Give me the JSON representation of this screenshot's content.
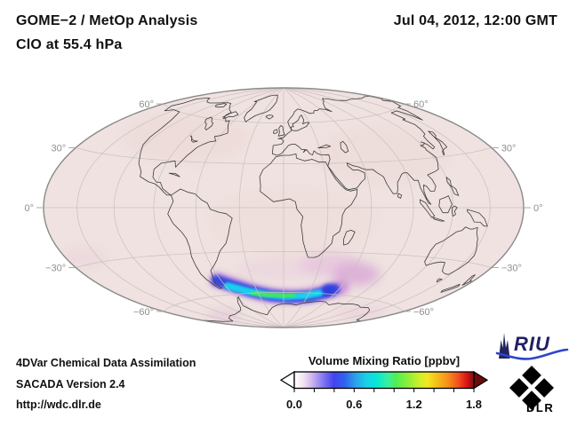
{
  "header": {
    "title_line1": "GOME−2 / MetOp Analysis",
    "title_line2": "ClO at 55.4 hPa",
    "timestamp": "Jul 04, 2012, 12:00 GMT"
  },
  "footer": {
    "line1": "4DVar Chemical Data Assimilation",
    "line2": "SACADA Version 2.4",
    "line3": "http://wdc.dlr.de"
  },
  "logos": {
    "riu_text": "RIU",
    "dlr_text": "DLR",
    "riu_color": "#1f1f66",
    "riu_wave_color": "#2d46c8",
    "dlr_color": "#000000"
  },
  "colorbar": {
    "title": "Volume Mixing Ratio [ppbv]",
    "tick_labels": [
      "0.0",
      "0.6",
      "1.2",
      "1.8"
    ],
    "tick_values": [
      0.0,
      0.6,
      1.2,
      1.8
    ],
    "range": [
      0.0,
      1.8
    ],
    "minor_tick_step": 0.2,
    "left_arrow_color": "#ffffff",
    "right_arrow_color": "#6b0c0c",
    "gradient_stops": [
      [
        "0.00",
        "#ffffff"
      ],
      [
        "0.05",
        "#f3e4f2"
      ],
      [
        "0.10",
        "#cdb3ee"
      ],
      [
        "0.16",
        "#8079f2"
      ],
      [
        "0.22",
        "#4343ef"
      ],
      [
        "0.28",
        "#2f63ef"
      ],
      [
        "0.34",
        "#2da0ea"
      ],
      [
        "0.40",
        "#19cfe8"
      ],
      [
        "0.46",
        "#06e8d5"
      ],
      [
        "0.52",
        "#3aef9d"
      ],
      [
        "0.57",
        "#52ef52"
      ],
      [
        "0.63",
        "#8cef3a"
      ],
      [
        "0.69",
        "#c9ef2c"
      ],
      [
        "0.74",
        "#f2e822"
      ],
      [
        "0.80",
        "#f5ba1a"
      ],
      [
        "0.86",
        "#f58a1a"
      ],
      [
        "0.91",
        "#f2531d"
      ],
      [
        "0.96",
        "#da1616"
      ],
      [
        "1.00",
        "#7d1010"
      ]
    ]
  },
  "map": {
    "projection": "hammer",
    "background_color": "#efe2e0",
    "graticule_color": "#cbc0be",
    "coastline_color": "#3c3c3c",
    "border_color": "#8a8a8a",
    "label_color": "#8e8e8e",
    "graticule_step_deg": 30,
    "lat_labels": [
      {
        "lat": 60,
        "left": "60°",
        "right": "60°"
      },
      {
        "lat": 30,
        "left": "30°",
        "right": "30°"
      },
      {
        "lat": 0,
        "left": "0°",
        "right": "0°"
      },
      {
        "lat": -30,
        "left": "−30°",
        "right": "−30°"
      },
      {
        "lat": -60,
        "left": "−60°",
        "right": "−60°"
      }
    ]
  },
  "chart_data": {
    "type": "heatmap",
    "subtype": "global-map-equal-area-projection",
    "title": "GOME−2 / MetOp Analysis",
    "subtitle": "ClO at 55.4 hPa",
    "timestamp": "Jul 04, 2012, 12:00 GMT",
    "quantity": "ClO volume mixing ratio",
    "units": "ppbv",
    "value_range": [
      0.0,
      1.8
    ],
    "colorbar_label": "Volume Mixing Ratio [ppbv]",
    "colorbar_ticks": [
      0.0,
      0.6,
      1.2,
      1.8
    ],
    "graticule": {
      "lat_step_deg": 30,
      "lon_step_deg": 30,
      "labeled_parallels_deg": [
        60,
        30,
        0,
        -30,
        -60
      ]
    },
    "field_summary": [
      {
        "region": "global background (most of both hemispheres)",
        "value_ppbv": "~0.0–0.1",
        "appearance": "pale pink"
      },
      {
        "region": "Antarctic polar-vortex crescent, ~55°S–70°S, ~60°W–40°E, hugging the Antarctic coast south of South America / Weddell Sea",
        "peak_value_ppbv": 1.0,
        "appearance": "green core ~0.9–1.0 ppbv, cyan ~0.7–0.8, royal-blue rim ~0.4–0.5, purple-magenta fringe ~0.2–0.3"
      },
      {
        "region": "diffuse patch northeast of the vortex crescent, ~50°S–60°S, ~25°E–55°E",
        "value_ppbv": "~0.2–0.3",
        "appearance": "magenta"
      },
      {
        "region": "faint haze north of the crescent over the South Atlantic, ~40°S–50°S",
        "value_ppbv": "~0.1–0.2",
        "appearance": "pink-magenta"
      },
      {
        "region": "small faint patches near the south polar map edge (lower left and lower right of Antarctica)",
        "value_ppbv": "~0.1",
        "appearance": "very faint magenta"
      }
    ]
  }
}
